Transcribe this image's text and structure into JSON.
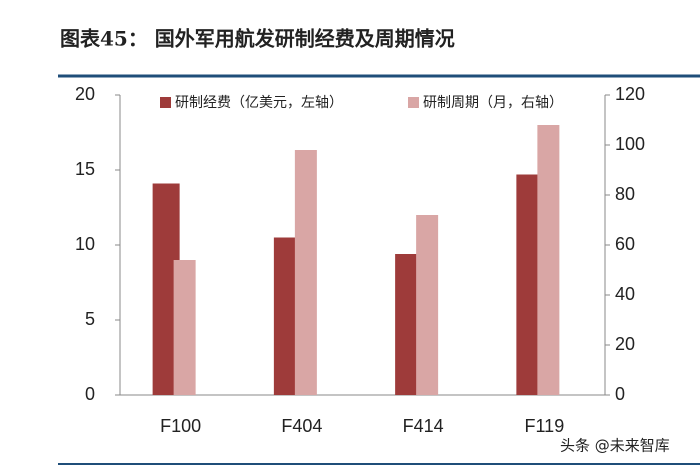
{
  "header": {
    "title": "图表45：  国外军用航发研制经费及周期情况"
  },
  "chart_data": {
    "type": "bar",
    "categories": [
      "F100",
      "F404",
      "F414",
      "F119"
    ],
    "series": [
      {
        "name": "研制经费（亿美元，左轴）",
        "color": "#9e3b3a",
        "values": [
          14.1,
          10.5,
          9.4,
          14.7
        ]
      },
      {
        "name": "研制周期（月，右轴）",
        "color": "#d9a6a5",
        "values": [
          54,
          98,
          72,
          108
        ],
        "axis": "y2"
      }
    ],
    "ylim": [
      0,
      20
    ],
    "yticks": [
      0,
      5,
      10,
      15,
      20
    ],
    "y2lim": [
      0,
      120
    ],
    "y2ticks": [
      0,
      20,
      40,
      60,
      80,
      100,
      120
    ],
    "legend": "top"
  },
  "watermark": "头条 @未来智库"
}
